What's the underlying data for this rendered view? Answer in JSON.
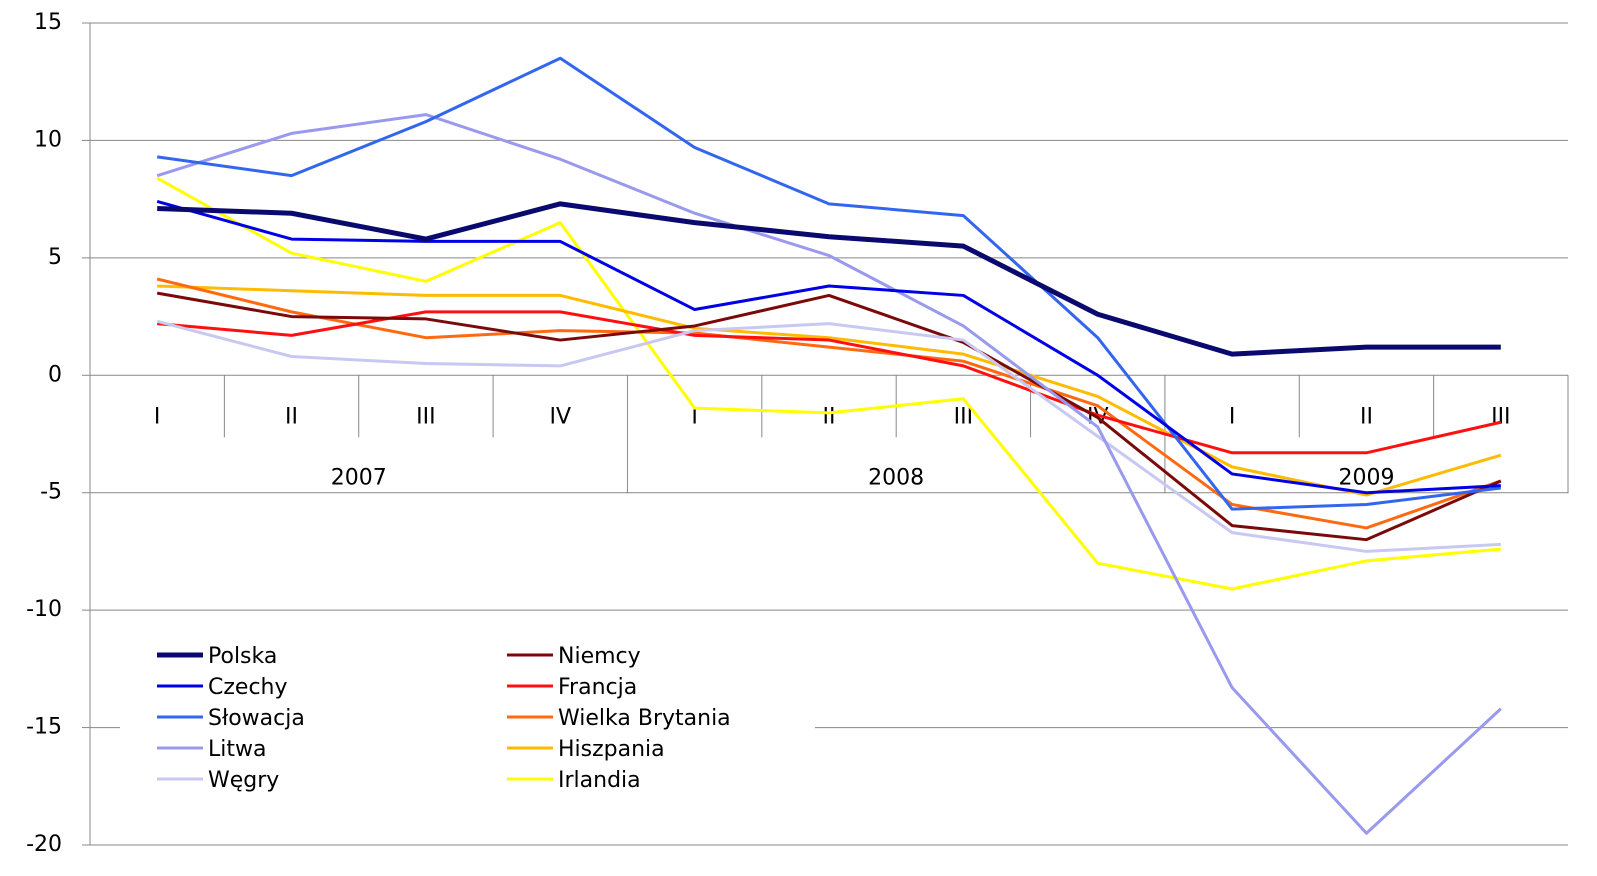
{
  "chart_data": {
    "type": "line",
    "categories": [
      "I",
      "II",
      "III",
      "IV",
      "I",
      "II",
      "III",
      "IV",
      "I",
      "II",
      "III"
    ],
    "category_groups": [
      "2007",
      "2008",
      "2009"
    ],
    "ylim": [
      -20,
      15
    ],
    "yticks": [
      -20,
      -15,
      -10,
      -5,
      0,
      5,
      10,
      15
    ],
    "grid": true,
    "legend": "bottom-left",
    "series": [
      {
        "name": "Polska",
        "color": "#0a0a6e",
        "values": [
          7.1,
          6.9,
          5.8,
          7.3,
          6.5,
          5.9,
          5.5,
          2.6,
          0.9,
          1.2,
          1.2
        ]
      },
      {
        "name": "Czechy",
        "color": "#0000e6",
        "values": [
          7.4,
          5.8,
          5.7,
          5.7,
          2.8,
          3.8,
          3.4,
          0.0,
          -4.2,
          -5.0,
          -4.7
        ]
      },
      {
        "name": "Słowacja",
        "color": "#3366ee",
        "values": [
          9.3,
          8.5,
          10.8,
          13.5,
          9.7,
          7.3,
          6.8,
          1.6,
          -5.7,
          -5.5,
          -4.8
        ]
      },
      {
        "name": "Litwa",
        "color": "#9999ee",
        "values": [
          8.5,
          10.3,
          11.1,
          9.2,
          6.9,
          5.1,
          2.1,
          -2.2,
          -13.3,
          -19.5,
          -14.2
        ]
      },
      {
        "name": "Węgry",
        "color": "#c8c8f2",
        "values": [
          2.3,
          0.8,
          0.5,
          0.4,
          1.9,
          2.2,
          1.5,
          -2.6,
          -6.7,
          -7.5,
          -7.2
        ]
      },
      {
        "name": "Niemcy",
        "color": "#7a0a0a",
        "values": [
          3.5,
          2.5,
          2.4,
          1.5,
          2.1,
          3.4,
          1.4,
          -1.8,
          -6.4,
          -7.0,
          -4.5
        ]
      },
      {
        "name": "Francja",
        "color": "#ff1010",
        "values": [
          2.2,
          1.7,
          2.7,
          2.7,
          1.7,
          1.5,
          0.4,
          -1.7,
          -3.3,
          -3.3,
          -2.0
        ]
      },
      {
        "name": "Wielka Brytania",
        "color": "#ff6a10",
        "values": [
          4.1,
          2.7,
          1.6,
          1.9,
          1.8,
          1.2,
          0.6,
          -1.3,
          -5.5,
          -6.5,
          -4.5
        ]
      },
      {
        "name": "Hiszpania",
        "color": "#ffbb00",
        "values": [
          3.8,
          3.6,
          3.4,
          3.4,
          2.0,
          1.6,
          0.9,
          -0.9,
          -3.9,
          -5.1,
          -3.4
        ]
      },
      {
        "name": "Irlandia",
        "color": "#ffff00",
        "values": [
          8.4,
          5.2,
          4.0,
          6.5,
          -1.4,
          -1.6,
          -1.0,
          -8.0,
          -9.1,
          -7.9,
          -7.4
        ]
      }
    ]
  }
}
